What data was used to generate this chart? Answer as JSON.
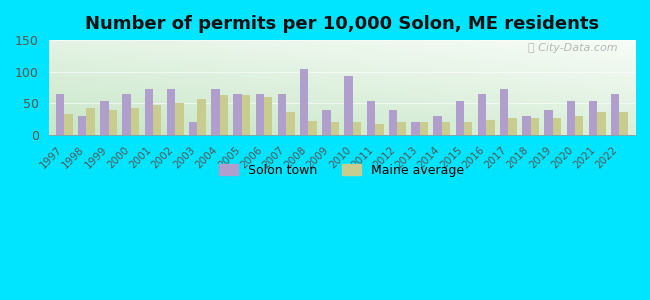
{
  "years": [
    1997,
    1998,
    1999,
    2000,
    2001,
    2002,
    2003,
    2004,
    2005,
    2006,
    2007,
    2008,
    2009,
    2010,
    2011,
    2012,
    2013,
    2014,
    2015,
    2016,
    2017,
    2018,
    2019,
    2020,
    2021,
    2022
  ],
  "solon": [
    65,
    30,
    53,
    65,
    72,
    72,
    20,
    72,
    65,
    65,
    65,
    105,
    40,
    93,
    53,
    40,
    20,
    30,
    53,
    65,
    72,
    30,
    40,
    53,
    53,
    65
  ],
  "maine": [
    33,
    43,
    40,
    43,
    47,
    50,
    57,
    63,
    63,
    60,
    37,
    22,
    20,
    20,
    17,
    20,
    20,
    20,
    20,
    23,
    27,
    27,
    27,
    30,
    37,
    37
  ],
  "solon_color": "#b09fcc",
  "maine_color": "#c8cc8f",
  "background_outer": "#00e5ff",
  "title": "Number of permits per 10,000 Solon, ME residents",
  "title_fontsize": 13,
  "ylim": [
    0,
    150
  ],
  "yticks": [
    0,
    50,
    100,
    150
  ],
  "legend_solon": "Solon town",
  "legend_maine": "Maine average",
  "watermark": "ⓘ City-Data.com"
}
